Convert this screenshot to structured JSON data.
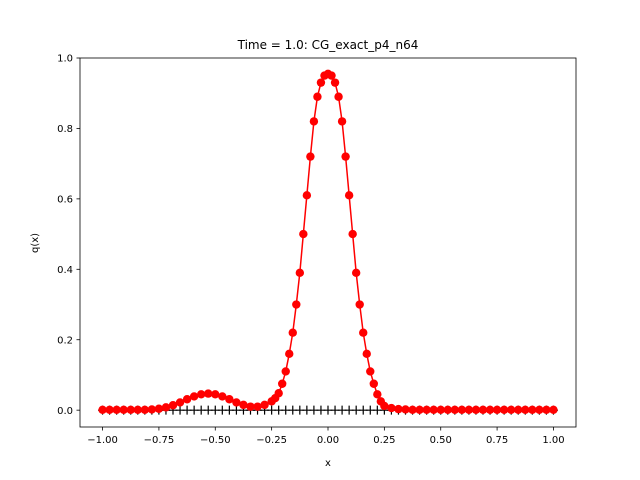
{
  "chart_data": {
    "type": "line",
    "title": "Time = 1.0: CG_exact_p4_n64",
    "xlabel": "x",
    "ylabel": "q(x)",
    "xlim": [
      -1.1,
      1.1
    ],
    "ylim": [
      -0.0478,
      1.0
    ],
    "xticks": [
      -1.0,
      -0.75,
      -0.5,
      -0.25,
      0.0,
      0.25,
      0.5,
      0.75,
      1.0
    ],
    "xtick_labels": [
      "−1.00",
      "−0.75",
      "−0.50",
      "−0.25",
      "0.00",
      "0.25",
      "0.50",
      "0.75",
      "1.00"
    ],
    "yticks": [
      0.0,
      0.2,
      0.4,
      0.6,
      0.8,
      1.0
    ],
    "ytick_labels": [
      "0.0",
      "0.2",
      "0.4",
      "0.6",
      "0.8",
      "1.0"
    ],
    "grid": false,
    "colors": {
      "numerical": "#ff0000",
      "reference": "#000000"
    },
    "series": [
      {
        "style": "red line with circle markers",
        "x": [
          -1.0,
          -0.96875,
          -0.9375,
          -0.90625,
          -0.875,
          -0.84375,
          -0.8125,
          -0.78125,
          -0.75,
          -0.71875,
          -0.6875,
          -0.65625,
          -0.625,
          -0.59375,
          -0.5625,
          -0.53125,
          -0.5,
          -0.46875,
          -0.4375,
          -0.40625,
          -0.375,
          -0.34375,
          -0.3125,
          -0.28125,
          -0.25,
          -0.234375,
          -0.21875,
          -0.203125,
          -0.1875,
          -0.171875,
          -0.15625,
          -0.140625,
          -0.125,
          -0.109375,
          -0.09375,
          -0.078125,
          -0.0625,
          -0.046875,
          -0.03125,
          -0.015625,
          0.0,
          0.015625,
          0.03125,
          0.046875,
          0.0625,
          0.078125,
          0.09375,
          0.109375,
          0.125,
          0.140625,
          0.15625,
          0.171875,
          0.1875,
          0.203125,
          0.21875,
          0.234375,
          0.25,
          0.28125,
          0.3125,
          0.34375,
          0.375,
          0.40625,
          0.4375,
          0.46875,
          0.5,
          0.53125,
          0.5625,
          0.59375,
          0.625,
          0.65625,
          0.6875,
          0.71875,
          0.75,
          0.78125,
          0.8125,
          0.84375,
          0.875,
          0.90625,
          0.9375,
          0.96875,
          1.0
        ],
        "y": [
          0.001,
          0.001,
          0.001,
          0.001,
          0.001,
          0.001,
          0.001,
          0.002,
          0.004,
          0.008,
          0.014,
          0.022,
          0.031,
          0.039,
          0.045,
          0.047,
          0.045,
          0.039,
          0.031,
          0.022,
          0.015,
          0.01,
          0.01,
          0.015,
          0.025,
          0.034,
          0.048,
          0.075,
          0.11,
          0.16,
          0.22,
          0.3,
          0.39,
          0.5,
          0.61,
          0.72,
          0.82,
          0.89,
          0.93,
          0.95,
          0.955,
          0.95,
          0.93,
          0.89,
          0.82,
          0.72,
          0.61,
          0.5,
          0.39,
          0.3,
          0.22,
          0.16,
          0.11,
          0.075,
          0.045,
          0.025,
          0.012,
          0.006,
          0.003,
          0.002,
          0.001,
          0.001,
          0.001,
          0.001,
          0.001,
          0.001,
          0.001,
          0.001,
          0.001,
          0.001,
          0.001,
          0.001,
          0.001,
          0.001,
          0.001,
          0.001,
          0.001,
          0.001,
          0.001,
          0.001,
          0.001
        ]
      },
      {
        "style": "black plus markers",
        "x": [
          -1.0,
          -0.96875,
          -0.9375,
          -0.90625,
          -0.875,
          -0.84375,
          -0.8125,
          -0.78125,
          -0.75,
          -0.71875,
          -0.6875,
          -0.65625,
          -0.625,
          -0.59375,
          -0.5625,
          -0.53125,
          -0.5,
          -0.46875,
          -0.4375,
          -0.40625,
          -0.375,
          -0.34375,
          -0.3125,
          -0.28125,
          -0.25,
          -0.21875,
          -0.1875,
          -0.15625,
          -0.125,
          -0.09375,
          -0.0625,
          -0.03125,
          0.0,
          0.03125,
          0.0625,
          0.09375,
          0.125,
          0.15625,
          0.1875,
          0.21875,
          0.25,
          0.28125,
          0.3125,
          0.34375,
          0.375,
          0.40625,
          0.4375,
          0.46875,
          0.5,
          0.53125,
          0.5625,
          0.59375,
          0.625,
          0.65625,
          0.6875,
          0.71875,
          0.75,
          0.78125,
          0.8125,
          0.84375,
          0.875,
          0.90625,
          0.9375,
          0.96875,
          1.0
        ],
        "y": [
          0.0,
          0.0,
          0.0,
          0.0,
          0.0,
          0.0,
          0.0,
          0.0,
          0.0,
          0.0,
          0.0,
          0.0,
          0.0,
          0.0,
          0.0,
          0.0,
          0.0,
          0.0,
          0.0,
          0.0,
          0.0,
          0.0,
          0.0,
          0.0,
          0.0,
          0.0,
          0.0,
          0.0,
          0.0,
          0.0,
          0.0,
          0.0,
          0.0,
          0.0,
          0.0,
          0.0,
          0.0,
          0.0,
          0.0,
          0.0,
          0.0,
          0.0,
          0.0,
          0.0,
          0.0,
          0.0,
          0.0,
          0.0,
          0.0,
          0.0,
          0.0,
          0.0,
          0.0,
          0.0,
          0.0,
          0.0,
          0.0,
          0.0,
          0.0,
          0.0,
          0.0,
          0.0,
          0.0,
          0.0,
          0.0
        ]
      }
    ]
  }
}
